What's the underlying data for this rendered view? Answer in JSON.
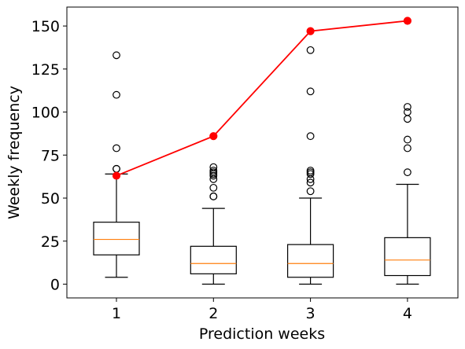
{
  "chart_data": {
    "type": "box",
    "xlabel": "Prediction weeks",
    "ylabel": "Weekly frequency",
    "categories": [
      "1",
      "2",
      "3",
      "4"
    ],
    "ylim": [
      -8,
      161
    ],
    "y_ticks": [
      0,
      25,
      50,
      75,
      100,
      125,
      150
    ],
    "grid": false,
    "legend": "none",
    "boxes": [
      {
        "category": "1",
        "whisker_low": 4,
        "q1": 17,
        "median": 26,
        "q3": 36,
        "whisker_high": 64,
        "outliers": [
          67,
          67,
          79,
          110,
          133
        ]
      },
      {
        "category": "2",
        "whisker_low": 0,
        "q1": 6,
        "median": 12,
        "q3": 22,
        "whisker_high": 44,
        "outliers": [
          51,
          51,
          56,
          61,
          63,
          64,
          65,
          66,
          68
        ]
      },
      {
        "category": "3",
        "whisker_low": 0,
        "q1": 4,
        "median": 12,
        "q3": 23,
        "whisker_high": 50,
        "outliers": [
          54,
          59,
          61,
          64,
          65,
          66,
          86,
          112,
          136
        ]
      },
      {
        "category": "4",
        "whisker_low": 0,
        "q1": 5,
        "median": 14,
        "q3": 27,
        "whisker_high": 58,
        "outliers": [
          65,
          79,
          84,
          96,
          100,
          103
        ]
      }
    ],
    "line_series": {
      "type": "line",
      "x": [
        "1",
        "2",
        "3",
        "4"
      ],
      "values": [
        63,
        86,
        147,
        153
      ],
      "color": "#ff0000"
    },
    "colors": {
      "box": "#000000",
      "median": "#ff7f0e",
      "line": "#ff0000"
    }
  }
}
